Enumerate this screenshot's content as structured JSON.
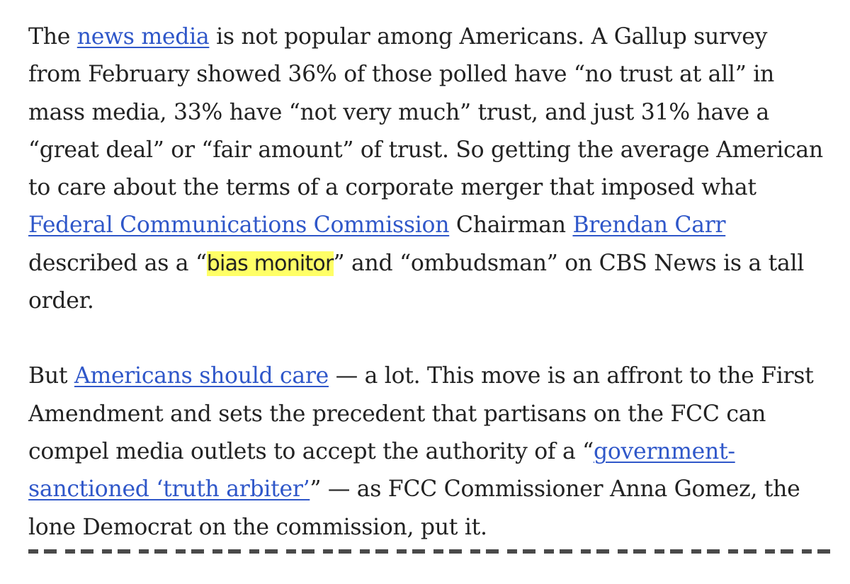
{
  "para1": {
    "l1_pre": "The ",
    "l1_link": "news media",
    "l1_post": " is not popular among Americans. A Gallup survey",
    "l2": "from February showed 36% of those polled have “no trust at all” in",
    "l3": "mass media, 33% have “not very much” trust, and just 31% have a",
    "l4": "“great deal” or “fair amount” of trust. So getting the average American",
    "l5": "to care about the terms of a corporate merger that imposed what",
    "l6_link1": "Federal Communications Commission",
    "l6_mid": " Chairman ",
    "l6_link2": "Brendan Carr",
    "l7_pre": "described as a “",
    "l7_highlight": "bias monitor",
    "l7_post": "” and “ombudsman” on CBS News is a tall",
    "l8": "order."
  },
  "para2": {
    "l1_pre": "But ",
    "l1_link": "Americans should care",
    "l1_post": " — a lot. This move is an affront to the First",
    "l2": "Amendment and sets the precedent that partisans on the FCC can",
    "l3_pre": "compel media outlets to accept the authority of a “",
    "l3_link": "government-",
    "l4_link": "sanctioned ‘truth arbiter’",
    "l4_post": "” — as FCC Commissioner Anna Gomez, the",
    "l5": "lone Democrat on the commission, put it."
  },
  "colors": {
    "text": "#222222",
    "link": "#2f57c9",
    "highlight": "#ffff66",
    "background": "#ffffff"
  }
}
